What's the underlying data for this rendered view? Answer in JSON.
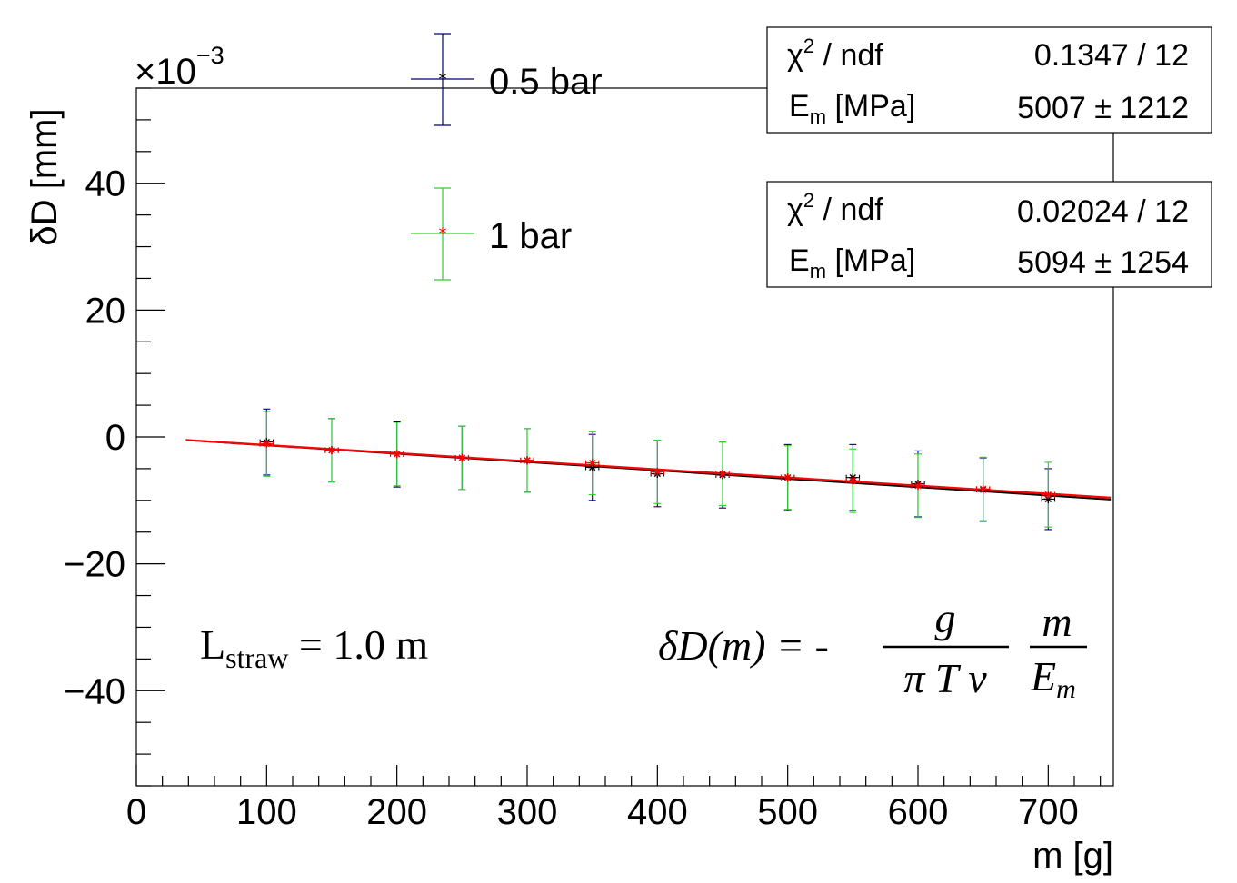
{
  "chart_data": {
    "type": "scatter",
    "xlabel": "m [g]",
    "ylabel": "δD [mm]",
    "y_exponent_base": "×10",
    "y_exponent_power": "−3",
    "xlim": [
      0,
      750
    ],
    "ylim": [
      -0.055,
      0.055
    ],
    "x_ticks": [
      0,
      100,
      200,
      300,
      400,
      500,
      600,
      700
    ],
    "x_tick_labels": [
      "0",
      "100",
      "200",
      "300",
      "400",
      "500",
      "600",
      "700"
    ],
    "y_ticks": [
      -0.04,
      -0.02,
      0,
      0.02,
      0.04
    ],
    "y_tick_labels": [
      "−40",
      "−20",
      "0",
      "20",
      "40"
    ],
    "x_error": 5,
    "series": [
      {
        "name": "0.5 bar",
        "color": "#000000",
        "error_color": "#00007f",
        "fit_color": "#000000",
        "x": [
          100,
          150,
          200,
          250,
          300,
          350,
          400,
          450,
          500,
          550,
          600,
          650,
          700
        ],
        "y": [
          -0.0008,
          -0.0021,
          -0.0027,
          -0.0033,
          -0.0037,
          -0.0048,
          -0.0058,
          -0.006,
          -0.0064,
          -0.0064,
          -0.0074,
          -0.0083,
          -0.0098
        ],
        "y_error": [
          0.0052,
          0.005,
          0.0052,
          0.005,
          0.005,
          0.0052,
          0.0052,
          0.0052,
          0.0052,
          0.0052,
          0.0052,
          0.005,
          0.0048
        ],
        "fit": {
          "slope": -1.32e-05,
          "intercept": 0.0,
          "x_range": [
            38,
            748
          ]
        }
      },
      {
        "name": "1 bar",
        "color": "#ff0000",
        "error_color": "#33cc33",
        "fit_color": "#ff0000",
        "x": [
          100,
          150,
          200,
          250,
          300,
          350,
          400,
          450,
          500,
          550,
          600,
          650,
          700
        ],
        "y": [
          -0.0011,
          -0.0021,
          -0.0027,
          -0.0033,
          -0.0037,
          -0.0041,
          -0.0055,
          -0.0058,
          -0.0064,
          -0.0069,
          -0.0077,
          -0.0082,
          -0.0091
        ],
        "y_error": [
          0.0051,
          0.005,
          0.005,
          0.005,
          0.005,
          0.005,
          0.005,
          0.005,
          0.005,
          0.005,
          0.005,
          0.005,
          0.0051
        ],
        "fit": {
          "slope": -1.28e-05,
          "intercept": 0.0,
          "x_range": [
            38,
            748
          ]
        }
      }
    ],
    "legend": {
      "placement": "top-center",
      "entries": [
        {
          "label": "0.5 bar",
          "marker_color": "#000000",
          "error_color": "#00007f"
        },
        {
          "label": "1 bar",
          "marker_color": "#ff0000",
          "error_color": "#33cc33"
        }
      ]
    },
    "stat_boxes": [
      {
        "chi2_label": "χ",
        "chi2_sup": "2",
        "chi2_rest": " / ndf",
        "chi2_value": "0.1347 / 12",
        "em_label": "E",
        "em_sub": "m",
        "em_rest": " [MPa]",
        "em_value": "5007 ±  1212"
      },
      {
        "chi2_label": "χ",
        "chi2_sup": "2",
        "chi2_rest": " / ndf",
        "chi2_value": "0.02024 / 12",
        "em_label": "E",
        "em_sub": "m",
        "em_rest": " [MPa]",
        "em_value": "5094 ±  1254"
      }
    ],
    "annotations": {
      "straw_L": "L",
      "straw_sub": "straw",
      "straw_rest": " = 1.0 m",
      "formula_lhs": "δD(m) = -",
      "formula_num1": "g",
      "formula_den1": "π T  ν",
      "formula_num2": "m",
      "formula_den2_main": "E",
      "formula_den2_sub": "m"
    }
  }
}
